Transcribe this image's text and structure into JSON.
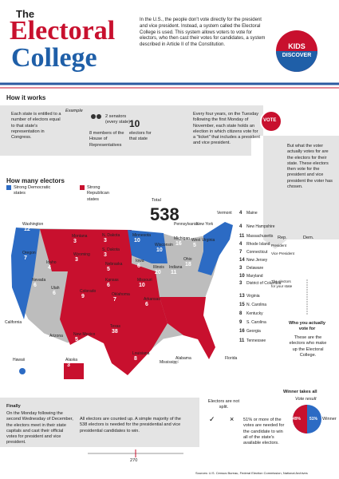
{
  "header": {
    "the": "The",
    "title_1": "Electoral",
    "title_2": "College",
    "intro": "In the U.S., the people don't vote directly for the president and vice president. Instead, a system called the Electoral College is used. This system allows voters to vote for electors, who then cast their votes for candidates, a system described in Article II of the Constitution.",
    "logo_top": "KIDS",
    "logo_bottom": "DISCOVER"
  },
  "how_it_works": {
    "heading": "How it works",
    "step_1": "Each state is entitled to a number of electors equal to that state's representation in Congress.",
    "example": "Example",
    "senators": "2 senators (every state)",
    "house": "8 members of the House of Representatives",
    "total": "10",
    "total_label": "electors for that state",
    "step_2": "Every four years, on the Tuesday following the first Monday of November, each state holds an election in which citizens vote for a \"ticket\" that includes a president and vice president.",
    "vote": "VOTE",
    "step_3": "But what the voter actually votes for are the electors for their state. These electors then vote for the president and vice president the voter has chosen."
  },
  "map": {
    "heading": "How many electors",
    "legend_dem": "Strong Democratic states",
    "legend_rep": "Strong Republican states",
    "total_label": "Total",
    "total": "538",
    "states": [
      {
        "name": "Washington",
        "electors": 12
      },
      {
        "name": "Oregon",
        "electors": 7
      },
      {
        "name": "California",
        "electors": 55
      },
      {
        "name": "Nevada",
        "electors": 6
      },
      {
        "name": "Idaho",
        "electors": 4
      },
      {
        "name": "Montana",
        "electors": 3
      },
      {
        "name": "Wyoming",
        "electors": 3
      },
      {
        "name": "Utah",
        "electors": 6
      },
      {
        "name": "Arizona",
        "electors": 11
      },
      {
        "name": "Colorado",
        "electors": 9
      },
      {
        "name": "New Mexico",
        "electors": 5
      },
      {
        "name": "N. Dakota",
        "electors": 3
      },
      {
        "name": "S. Dakota",
        "electors": 3
      },
      {
        "name": "Nebraska",
        "electors": 5
      },
      {
        "name": "Kansas",
        "electors": 6
      },
      {
        "name": "Oklahoma",
        "electors": 7
      },
      {
        "name": "Texas",
        "electors": 38
      },
      {
        "name": "Minnesota",
        "electors": 10
      },
      {
        "name": "Iowa",
        "electors": 6
      },
      {
        "name": "Missouri",
        "electors": 10
      },
      {
        "name": "Arkansas",
        "electors": 6
      },
      {
        "name": "Louisiana",
        "electors": 8
      },
      {
        "name": "Wisconsin",
        "electors": 10
      },
      {
        "name": "Illinois",
        "electors": 20
      },
      {
        "name": "Michigan",
        "electors": 16
      },
      {
        "name": "Indiana",
        "electors": 11
      },
      {
        "name": "Ohio",
        "electors": 18
      },
      {
        "name": "Mississippi",
        "electors": 6
      },
      {
        "name": "Alabama",
        "electors": 9
      },
      {
        "name": "Pennsylvania",
        "electors": 20
      },
      {
        "name": "West Virginia",
        "electors": 5
      },
      {
        "name": "New York",
        "electors": 29
      },
      {
        "name": "Vermont",
        "electors": 3
      },
      {
        "name": "Maine",
        "electors": 4
      },
      {
        "name": "New Hampshire",
        "electors": 4
      },
      {
        "name": "Massachusetts",
        "electors": 11
      },
      {
        "name": "Rhode Island",
        "electors": 4
      },
      {
        "name": "Connecticut",
        "electors": 7
      },
      {
        "name": "New Jersey",
        "electors": 14
      },
      {
        "name": "Delaware",
        "electors": 3
      },
      {
        "name": "Maryland",
        "electors": 10
      },
      {
        "name": "District of Columbia",
        "electors": 3
      },
      {
        "name": "Virginia",
        "electors": 13
      },
      {
        "name": "N. Carolina",
        "electors": 15
      },
      {
        "name": "Kentucky",
        "electors": 8
      },
      {
        "name": "S. Carolina",
        "electors": 9
      },
      {
        "name": "Georgia",
        "electors": 16
      },
      {
        "name": "Tennessee",
        "electors": 11
      },
      {
        "name": "Florida",
        "electors": 29
      },
      {
        "name": "Alaska",
        "electors": 3
      },
      {
        "name": "Hawaii",
        "electors": 4
      }
    ]
  },
  "ballot": {
    "rep": "Rep.",
    "dem": "Dem.",
    "president": "President",
    "vice_president": "Vice President",
    "electors": "The electors for your state",
    "who": "Who you actually vote for",
    "college": "These are the electors who make up the Electoral College."
  },
  "finale": {
    "finally": "Finally",
    "finally_text": "On the Monday following the second Wednesday of December, the electors meet in their state capitals and cast their official votes for president and vice president.",
    "counted": "All electors are counted up. A simple majority of the 538 electors is needed for the presidential and vice presidential candidates to win.",
    "majority": "270",
    "not_split": "Electors are not split.",
    "majority_text": "51% or more of the votes are needed for the candidate to win all of the state's available electors.",
    "winner_takes_all": "Winner takes all",
    "vote_result": "Vote result",
    "loser_pct": "49%",
    "winner_pct": "51%",
    "winner": "Winner"
  },
  "source": "Sources: U.S. Census Bureau, Federal Election Commission, National Archives"
}
